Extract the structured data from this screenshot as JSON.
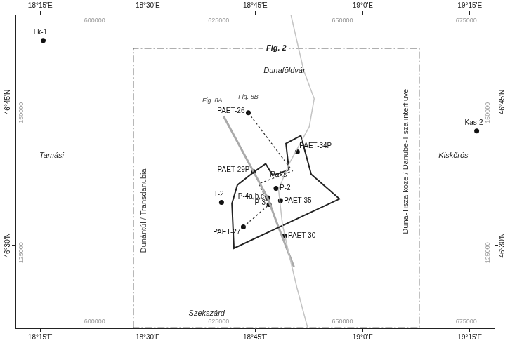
{
  "chart_data": {
    "type": "scatter",
    "xlim": [
      584000,
      680700
    ],
    "ylim": [
      111500,
      167500
    ],
    "xticks": [
      {
        "value": 589000,
        "label": "18°15'E"
      },
      {
        "value": 610700,
        "label": "18°30'E"
      },
      {
        "value": 632400,
        "label": "18°45'E"
      },
      {
        "value": 654100,
        "label": "19°0'E"
      },
      {
        "value": 675700,
        "label": "19°15'E"
      }
    ],
    "yticks": [
      {
        "value": 151900,
        "label": "46°45'N"
      },
      {
        "value": 126300,
        "label": "46°30'N"
      }
    ],
    "grid": false,
    "projected_grid": {
      "x": [
        600000,
        625000,
        650000,
        675000
      ],
      "y": [
        125000,
        150000
      ]
    },
    "river": {
      "color": "#c4c4c4",
      "path": [
        [
          639600,
          167500
        ],
        [
          641200,
          161300
        ],
        [
          642200,
          157500
        ],
        [
          644300,
          152500
        ],
        [
          643300,
          147500
        ],
        [
          639300,
          141000
        ],
        [
          637100,
          136300
        ],
        [
          637900,
          130000
        ],
        [
          639300,
          124400
        ],
        [
          640800,
          118800
        ],
        [
          643000,
          111500
        ]
      ]
    },
    "study_area": {
      "color": "#222222",
      "path": [
        [
          632400,
          139600
        ],
        [
          634500,
          140900
        ],
        [
          635900,
          138800
        ],
        [
          639200,
          139800
        ],
        [
          638600,
          144500
        ],
        [
          641600,
          145900
        ],
        [
          643700,
          139000
        ],
        [
          649400,
          134600
        ],
        [
          628100,
          125800
        ],
        [
          627700,
          133800
        ],
        [
          628800,
          137100
        ]
      ]
    },
    "frame": {
      "label": "Fig. 2",
      "color": "#333333",
      "line_style": "dashdot",
      "xlim": [
        607800,
        665500
      ],
      "ylim": [
        111600,
        161500
      ]
    },
    "lines": [
      {
        "label": "Fig. 8A",
        "color": "#aaaaaa",
        "line_style": "solid",
        "path": [
          [
            626000,
            149400
          ],
          [
            634900,
            134800
          ],
          [
            636900,
            130000
          ],
          [
            640200,
            122500
          ]
        ]
      },
      {
        "label": "Fig. 8B",
        "color": "#333333",
        "line_style": "dashed",
        "path": [
          [
            631000,
            150000
          ],
          [
            639900,
            139600
          ],
          [
            633100,
            137300
          ],
          [
            635200,
            133600
          ],
          [
            630000,
            129600
          ]
        ]
      }
    ],
    "wells": {
      "color": "#111111",
      "marker": "circle",
      "points": [
        {
          "label": "Lk-1",
          "x": 589600,
          "y": 162900
        },
        {
          "label": "Kas-2",
          "x": 677100,
          "y": 146750
        },
        {
          "label": "PAET-26",
          "x": 631000,
          "y": 150000
        },
        {
          "label": "PAET-34P",
          "x": 640900,
          "y": 143000
        },
        {
          "label": "PAET-29P",
          "x": 632000,
          "y": 139500
        },
        {
          "label": "P-2",
          "x": 636600,
          "y": 136500
        },
        {
          "label": "T-2",
          "x": 625600,
          "y": 134000
        },
        {
          "label": "P-4a,b,c",
          "x": 634900,
          "y": 134800
        },
        {
          "label": "PAET-35",
          "x": 637500,
          "y": 134300
        },
        {
          "label": "P-3",
          "x": 635200,
          "y": 133600
        },
        {
          "label": "PAET-27",
          "x": 630000,
          "y": 129600
        },
        {
          "label": "PAET-30",
          "x": 638300,
          "y": 128000
        }
      ]
    },
    "towns": [
      {
        "label": "Dunaföldvár",
        "x": 638300,
        "y": 157500
      },
      {
        "label": "Tamási",
        "x": 591300,
        "y": 142300
      },
      {
        "label": "Paks",
        "x": 637100,
        "y": 138900
      },
      {
        "label": "Kiskőrös",
        "x": 672400,
        "y": 142300
      },
      {
        "label": "Szekszárd",
        "x": 622600,
        "y": 114100
      }
    ],
    "region_labels": [
      {
        "label": "Dunántúl / Transdanubia",
        "x": 609900,
        "y": 132500
      },
      {
        "label": "Duna-Tisza köze / Danube-Tisza interfluve",
        "x": 662900,
        "y": 141300
      }
    ]
  }
}
